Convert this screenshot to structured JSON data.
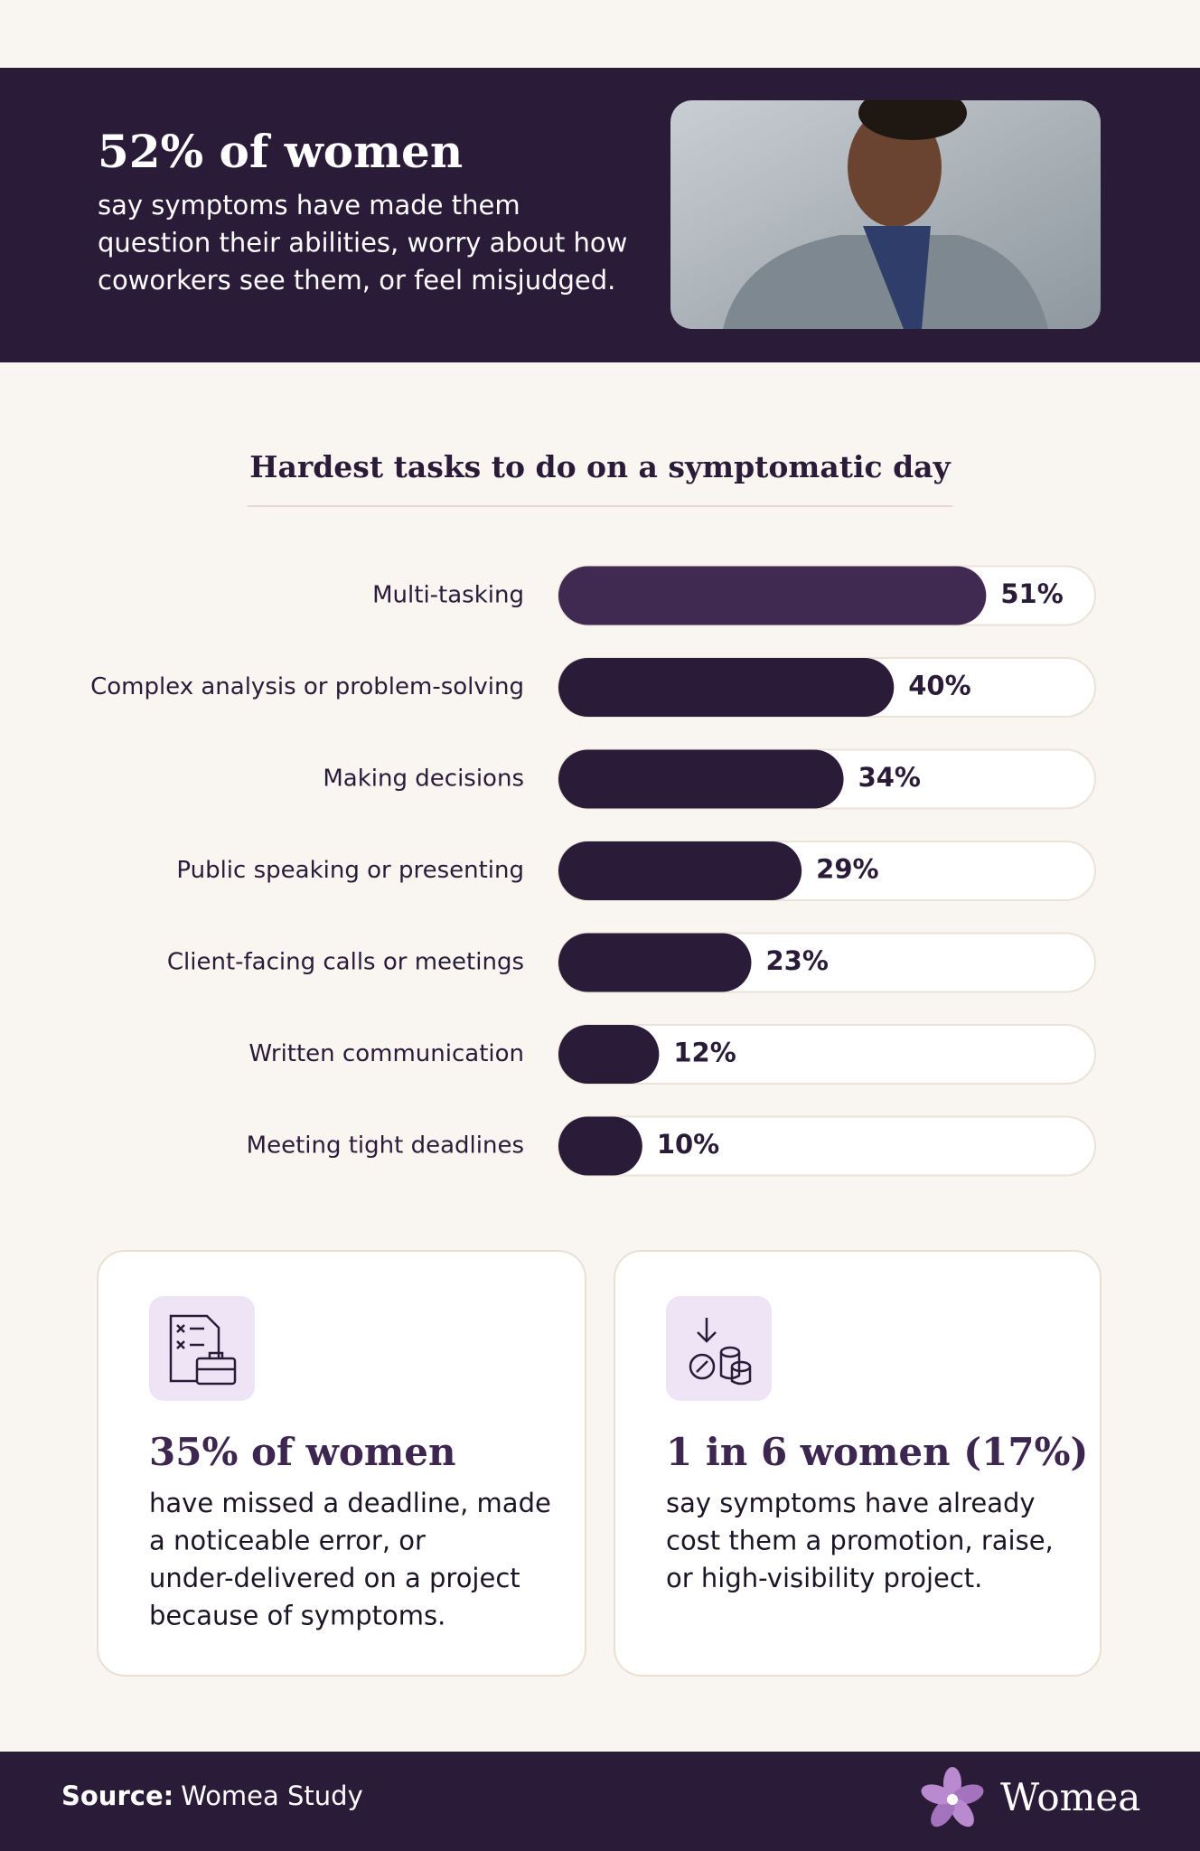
{
  "header": {
    "title": "52% of women",
    "body": [
      "say symptoms have made them",
      "question their abilities, worry about how",
      "coworkers see them, or feel misjudged."
    ]
  },
  "chart_data": {
    "type": "bar",
    "orientation": "horizontal",
    "title": "Hardest tasks to do on a symptomatic day",
    "categories": [
      "Multi-tasking",
      "Complex analysis or problem-solving",
      "Making decisions",
      "Public speaking or presenting",
      "Client-facing calls or meetings",
      "Written communication",
      "Meeting tight deadlines"
    ],
    "values": [
      51,
      40,
      34,
      29,
      23,
      12,
      10
    ],
    "value_labels": [
      "51%",
      "40%",
      "34%",
      "29%",
      "23%",
      "12%",
      "10%"
    ],
    "colors": [
      "#412a52",
      "#2a1b38",
      "#2a1b38",
      "#2a1b38",
      "#2a1b38",
      "#2a1b38",
      "#2a1b38"
    ],
    "xlim": [
      0,
      64
    ]
  },
  "cards": [
    {
      "title": "35% of women",
      "body": [
        "have missed a deadline, made",
        "a noticeable error, or",
        "under-delivered on a project",
        "because of symptoms."
      ]
    },
    {
      "title": "1 in 6 women (17%)",
      "body": [
        "say symptoms have already",
        "cost them a promotion, raise,",
        "or high-visibility project."
      ]
    }
  ],
  "footer": {
    "source_label": "Source:",
    "source": "Womea Study",
    "brand": "Womea"
  }
}
